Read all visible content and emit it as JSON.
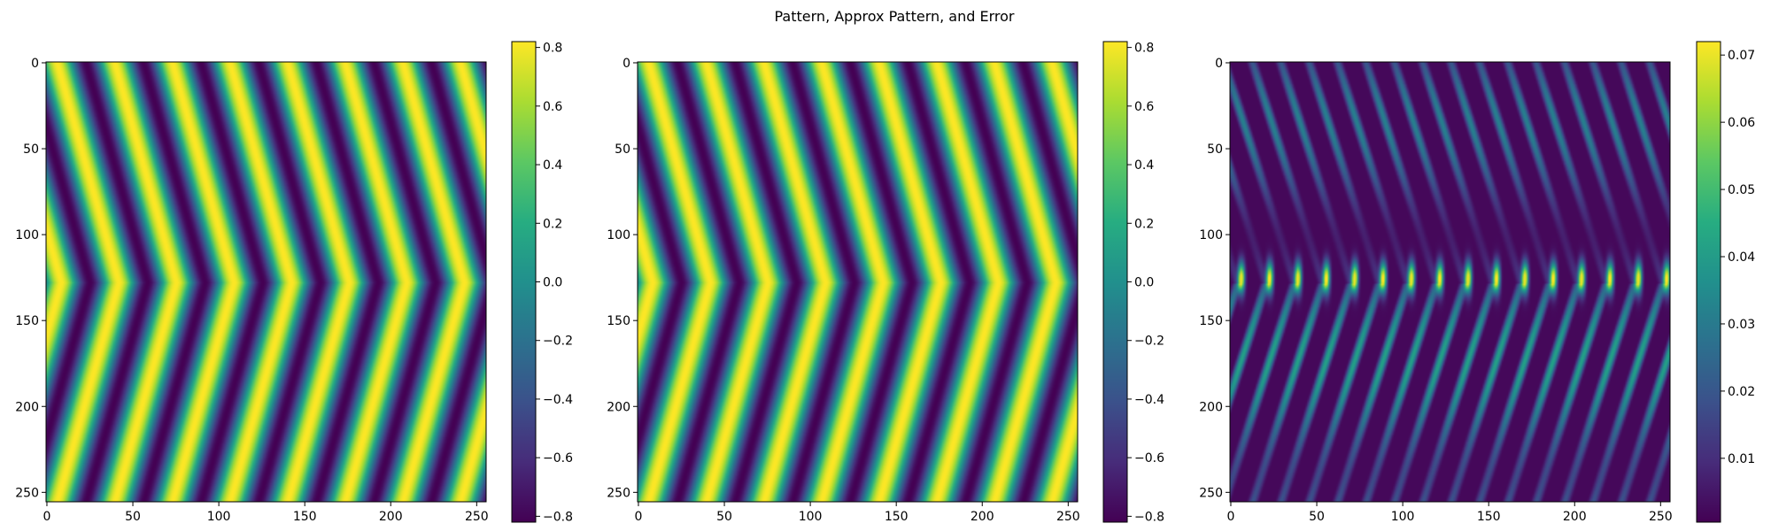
{
  "figure": {
    "title": "Pattern, Approx Pattern, and Error"
  },
  "chart_data": [
    {
      "type": "heatmap",
      "name": "pattern",
      "colormap": "viridis",
      "grid_size": [
        256,
        256
      ],
      "xlim": [
        0,
        255
      ],
      "ylim": [
        255,
        0
      ],
      "x_ticks": [
        0,
        50,
        100,
        150,
        200,
        250
      ],
      "y_ticks": [
        0,
        50,
        100,
        150,
        200,
        250
      ],
      "colorbar": {
        "min": -0.82,
        "max": 0.82,
        "ticks": [
          -0.8,
          -0.6,
          -0.4,
          -0.2,
          0.0,
          0.2,
          0.4,
          0.6,
          0.8
        ],
        "tick_labels": [
          "−0.8",
          "−0.6",
          "−0.4",
          "−0.2",
          "0.0",
          "0.2",
          "0.4",
          "0.6",
          "0.8"
        ]
      },
      "pattern": {
        "kind": "chevron",
        "center_row": 128,
        "stripe_period_x": 33.5,
        "slope": 0.28,
        "amplitude": 0.82
      }
    },
    {
      "type": "heatmap",
      "name": "approx-pattern",
      "colormap": "viridis",
      "grid_size": [
        256,
        256
      ],
      "xlim": [
        0,
        255
      ],
      "ylim": [
        255,
        0
      ],
      "x_ticks": [
        0,
        50,
        100,
        150,
        200,
        250
      ],
      "y_ticks": [
        0,
        50,
        100,
        150,
        200,
        250
      ],
      "colorbar": {
        "min": -0.82,
        "max": 0.82,
        "ticks": [
          -0.8,
          -0.6,
          -0.4,
          -0.2,
          0.0,
          0.2,
          0.4,
          0.6,
          0.8
        ],
        "tick_labels": [
          "−0.8",
          "−0.6",
          "−0.4",
          "−0.2",
          "0.0",
          "0.2",
          "0.4",
          "0.6",
          "0.8"
        ]
      },
      "pattern": {
        "kind": "chevron",
        "center_row": 128,
        "stripe_period_x": 33.5,
        "slope": 0.28,
        "amplitude": 0.82
      }
    },
    {
      "type": "heatmap",
      "name": "error",
      "colormap": "viridis",
      "grid_size": [
        256,
        256
      ],
      "xlim": [
        0,
        255
      ],
      "ylim": [
        255,
        0
      ],
      "x_ticks": [
        0,
        50,
        100,
        150,
        200,
        250
      ],
      "y_ticks": [
        0,
        50,
        100,
        150,
        200,
        250
      ],
      "colorbar": {
        "min": 0.0005,
        "max": 0.072,
        "ticks": [
          0.01,
          0.02,
          0.03,
          0.04,
          0.05,
          0.06,
          0.07
        ],
        "tick_labels": [
          "0.01",
          "0.02",
          "0.03",
          "0.04",
          "0.05",
          "0.06",
          "0.07"
        ]
      },
      "pattern": {
        "kind": "error",
        "center_row": 128,
        "stripe_period_x": 16.5,
        "peak_value": 0.071
      }
    }
  ]
}
